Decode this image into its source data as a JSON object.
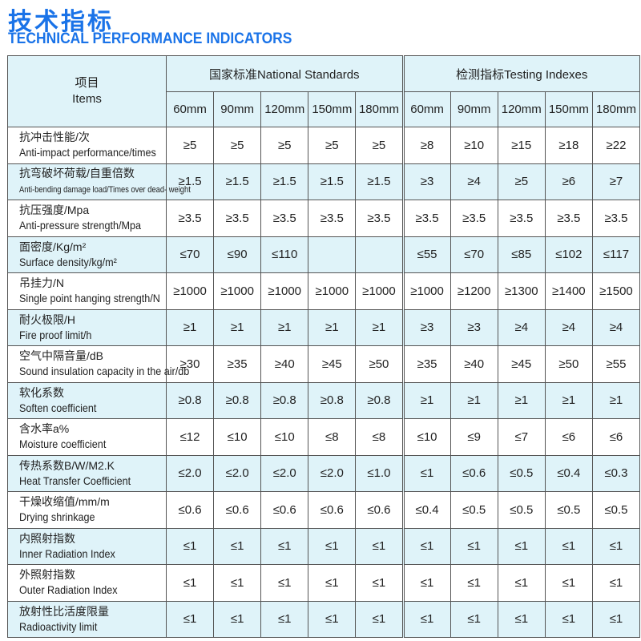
{
  "title_cn": "技术指标",
  "title_en": "TECHNICAL PERFORMANCE INDICATORS",
  "header": {
    "item_cn": "项目",
    "item_en": "Items",
    "group1": "国家标准National Standards",
    "group2": "检测指标Testing Indexes",
    "sizes": [
      "60mm",
      "90mm",
      "120mm",
      "150mm",
      "180mm"
    ]
  },
  "rows": [
    {
      "cn": "抗冲击性能/次",
      "en": "Anti-impact performance/times",
      "nat": [
        "≥5",
        "≥5",
        "≥5",
        "≥5",
        "≥5"
      ],
      "test": [
        "≥8",
        "≥10",
        "≥15",
        "≥18",
        "≥22"
      ]
    },
    {
      "cn": "抗弯破坏荷载/自重倍数",
      "en": "Anti-bending damage load/Times over dead- weight",
      "nat": [
        "≥1.5",
        "≥1.5",
        "≥1.5",
        "≥1.5",
        "≥1.5"
      ],
      "test": [
        "≥3",
        "≥4",
        "≥5",
        "≥6",
        "≥7"
      ]
    },
    {
      "cn": "抗压强度/Mpa",
      "en": "Anti-pressure strength/Mpa",
      "nat": [
        "≥3.5",
        "≥3.5",
        "≥3.5",
        "≥3.5",
        "≥3.5"
      ],
      "test": [
        "≥3.5",
        "≥3.5",
        "≥3.5",
        "≥3.5",
        "≥3.5"
      ]
    },
    {
      "cn": "面密度/Kg/m²",
      "en": "Surface density/kg/m²",
      "nat": [
        "≤70",
        "≤90",
        "≤110",
        "",
        ""
      ],
      "test": [
        "≤55",
        "≤70",
        "≤85",
        "≤102",
        "≤117"
      ]
    },
    {
      "cn": "吊挂力/N",
      "en": "Single point hanging strength/N",
      "nat": [
        "≥1000",
        "≥1000",
        "≥1000",
        "≥1000",
        "≥1000"
      ],
      "test": [
        "≥1000",
        "≥1200",
        "≥1300",
        "≥1400",
        "≥1500"
      ]
    },
    {
      "cn": "耐火极限/H",
      "en": "Fire proof limit/h",
      "nat": [
        "≥1",
        "≥1",
        "≥1",
        "≥1",
        "≥1"
      ],
      "test": [
        "≥3",
        "≥3",
        "≥4",
        "≥4",
        "≥4"
      ]
    },
    {
      "cn": "空气中隔音量/dB",
      "en": "Sound insulation capacity in the air/db",
      "nat": [
        "≥30",
        "≥35",
        "≥40",
        "≥45",
        "≥50"
      ],
      "test": [
        "≥35",
        "≥40",
        "≥45",
        "≥50",
        "≥55"
      ]
    },
    {
      "cn": "软化系数",
      "en": "Soften coefficient",
      "nat": [
        "≥0.8",
        "≥0.8",
        "≥0.8",
        "≥0.8",
        "≥0.8"
      ],
      "test": [
        "≥1",
        "≥1",
        "≥1",
        "≥1",
        "≥1"
      ]
    },
    {
      "cn": "含水率a%",
      "en": "Moisture coefficient",
      "nat": [
        "≤12",
        "≤10",
        "≤10",
        "≤8",
        "≤8"
      ],
      "test": [
        "≤10",
        "≤9",
        "≤7",
        "≤6",
        "≤6"
      ]
    },
    {
      "cn": "传热系数B/W/M2.K",
      "en": "Heat Transfer Coefficient",
      "nat": [
        "≤2.0",
        "≤2.0",
        "≤2.0",
        "≤2.0",
        "≤1.0"
      ],
      "test": [
        "≤1",
        "≤0.6",
        "≤0.5",
        "≤0.4",
        "≤0.3"
      ]
    },
    {
      "cn": "干燥收缩值/mm/m",
      "en": "Drying shrinkage",
      "nat": [
        "≤0.6",
        "≤0.6",
        "≤0.6",
        "≤0.6",
        "≤0.6"
      ],
      "test": [
        "≤0.4",
        "≤0.5",
        "≤0.5",
        "≤0.5",
        "≤0.5"
      ]
    },
    {
      "cn": "内照射指数",
      "en": "Inner Radiation Index",
      "nat": [
        "≤1",
        "≤1",
        "≤1",
        "≤1",
        "≤1"
      ],
      "test": [
        "≤1",
        "≤1",
        "≤1",
        "≤1",
        "≤1"
      ]
    },
    {
      "cn": "外照射指数",
      "en": "Outer Radiation Index",
      "nat": [
        "≤1",
        "≤1",
        "≤1",
        "≤1",
        "≤1"
      ],
      "test": [
        "≤1",
        "≤1",
        "≤1",
        "≤1",
        "≤1"
      ]
    },
    {
      "cn": "放射性比活度限量",
      "en": "Radioactivity limit",
      "nat": [
        "≤1",
        "≤1",
        "≤1",
        "≤1",
        "≤1"
      ],
      "test": [
        "≤1",
        "≤1",
        "≤1",
        "≤1",
        "≤1"
      ]
    }
  ],
  "colors": {
    "title": "#1a73e8",
    "row_tint": "#dff3f9",
    "border": "#555555"
  }
}
